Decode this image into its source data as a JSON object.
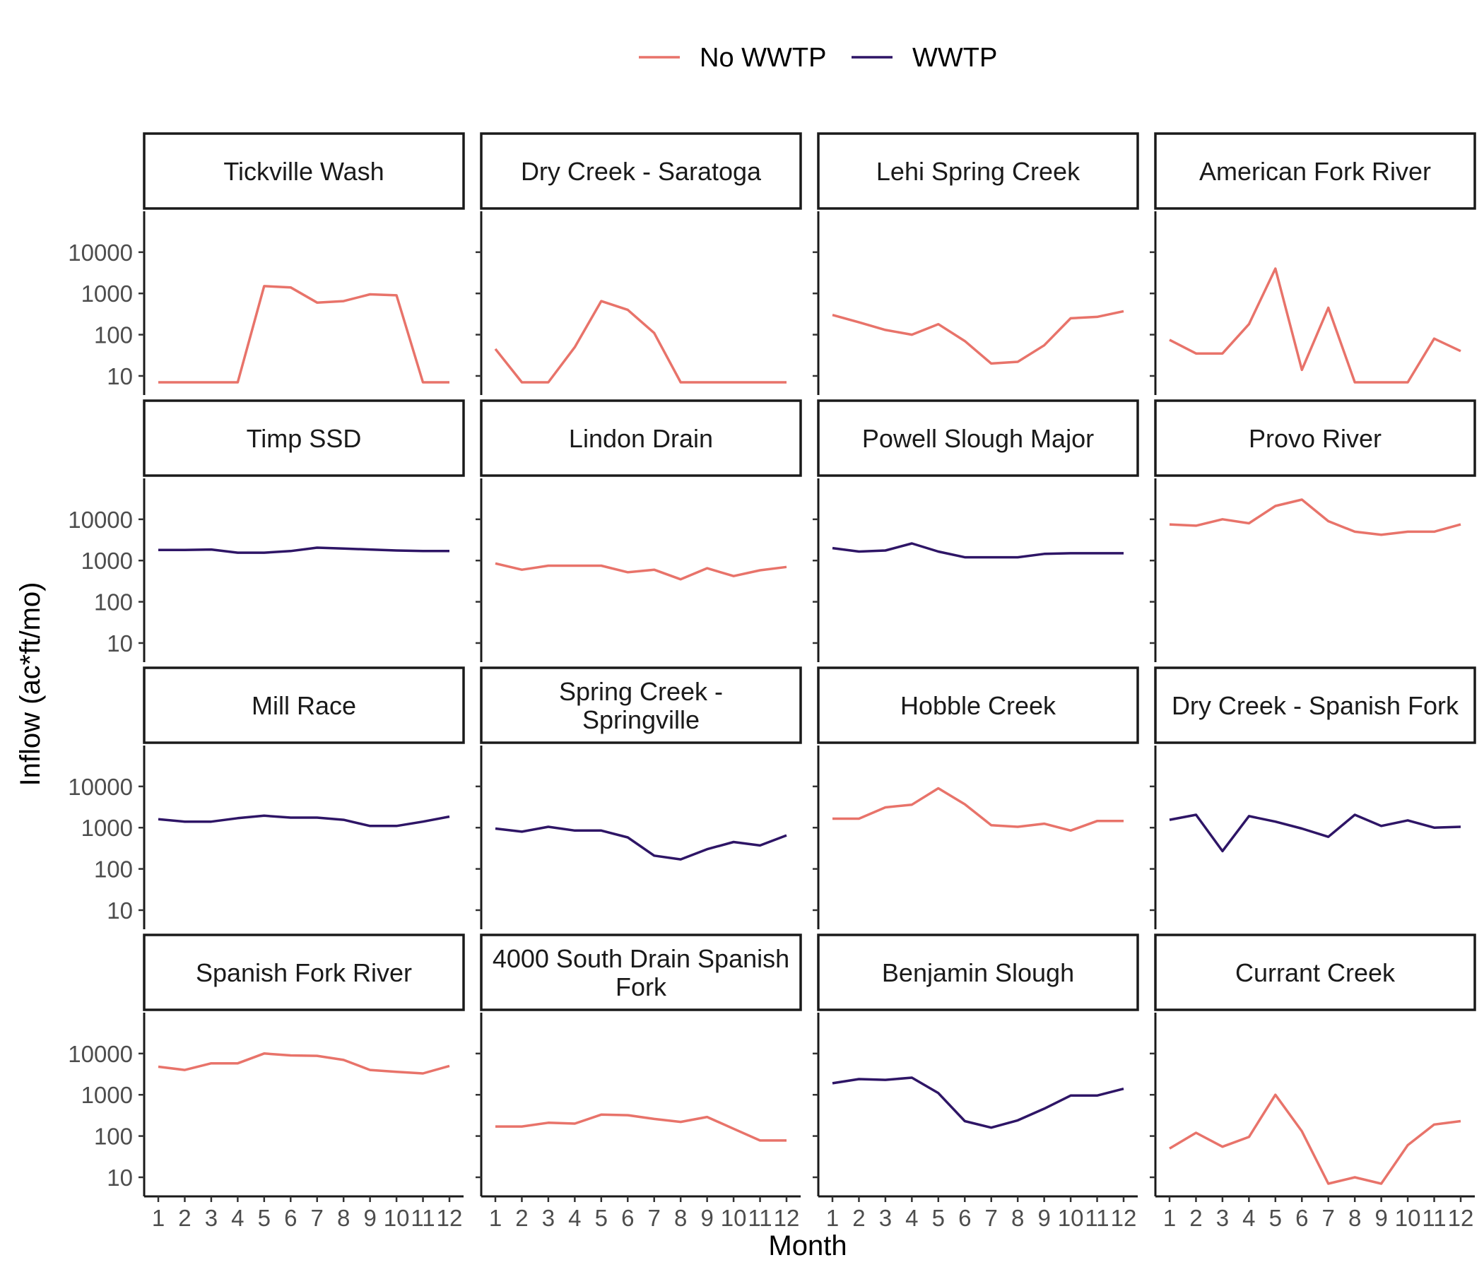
{
  "chart_data": {
    "type": "line",
    "layout": "facet-grid-4x4",
    "xlabel": "Month",
    "ylabel": "Inflow (ac*ft/mo)",
    "y_scale": "log10",
    "y_ticks": [
      10,
      100,
      1000,
      10000
    ],
    "x_ticks": [
      1,
      2,
      3,
      4,
      5,
      6,
      7,
      8,
      9,
      10,
      11,
      12
    ],
    "legend": {
      "position": "top",
      "entries": [
        {
          "label": "No WWTP",
          "color": "#E8736A"
        },
        {
          "label": "WWTP",
          "color": "#2E1566"
        }
      ]
    },
    "colors": {
      "No WWTP": "#E8736A",
      "WWTP": "#2E1566"
    },
    "grid": false,
    "panels": [
      {
        "title": [
          "Tickville Wash"
        ],
        "group": "No WWTP",
        "values": [
          7,
          7,
          7,
          7,
          1500,
          1400,
          600,
          650,
          950,
          900,
          7,
          7
        ]
      },
      {
        "title": [
          "Dry Creek - Saratoga"
        ],
        "group": "No WWTP",
        "values": [
          45,
          7,
          7,
          50,
          650,
          400,
          110,
          7,
          7,
          7,
          7,
          7
        ]
      },
      {
        "title": [
          "Lehi Spring Creek"
        ],
        "group": "No WWTP",
        "values": [
          300,
          200,
          130,
          100,
          180,
          70,
          20,
          22,
          55,
          250,
          270,
          370
        ]
      },
      {
        "title": [
          "American Fork River"
        ],
        "group": "No WWTP",
        "values": [
          75,
          35,
          35,
          180,
          4000,
          14,
          450,
          7,
          7,
          7,
          80,
          40
        ]
      },
      {
        "title": [
          "Timp SSD"
        ],
        "group": "WWTP",
        "values": [
          1800,
          1800,
          1850,
          1550,
          1550,
          1700,
          2050,
          1950,
          1850,
          1750,
          1700,
          1700
        ]
      },
      {
        "title": [
          "Lindon Drain"
        ],
        "group": "No WWTP",
        "values": [
          850,
          600,
          750,
          750,
          750,
          520,
          600,
          350,
          650,
          420,
          580,
          700
        ]
      },
      {
        "title": [
          "Powell Slough Major"
        ],
        "group": "WWTP",
        "values": [
          2000,
          1650,
          1750,
          2600,
          1650,
          1200,
          1200,
          1200,
          1450,
          1500,
          1500,
          1500
        ]
      },
      {
        "title": [
          "Provo River"
        ],
        "group": "No WWTP",
        "values": [
          7500,
          7000,
          10000,
          8000,
          21000,
          30000,
          9000,
          5000,
          4200,
          5000,
          5000,
          7500
        ]
      },
      {
        "title": [
          "Mill Race"
        ],
        "group": "WWTP",
        "values": [
          1600,
          1400,
          1400,
          1700,
          1950,
          1750,
          1750,
          1550,
          1100,
          1100,
          1400,
          1850
        ]
      },
      {
        "title": [
          "Spring Creek -",
          "Springville"
        ],
        "group": "WWTP",
        "values": [
          950,
          800,
          1050,
          850,
          850,
          580,
          210,
          170,
          300,
          450,
          370,
          650
        ]
      },
      {
        "title": [
          "Hobble Creek"
        ],
        "group": "No WWTP",
        "values": [
          1650,
          1650,
          3100,
          3600,
          9000,
          3700,
          1150,
          1050,
          1250,
          850,
          1450,
          1450
        ]
      },
      {
        "title": [
          "Dry Creek - Spanish Fork"
        ],
        "group": "WWTP",
        "values": [
          1550,
          2050,
          270,
          1900,
          1400,
          950,
          600,
          2050,
          1100,
          1500,
          1000,
          1050
        ]
      },
      {
        "title": [
          "Spanish Fork River"
        ],
        "group": "No WWTP",
        "values": [
          4800,
          4000,
          5800,
          5800,
          10000,
          9000,
          8800,
          7000,
          4000,
          3600,
          3300,
          5000
        ]
      },
      {
        "title": [
          "4000 South Drain Spanish",
          "Fork"
        ],
        "group": "No WWTP",
        "values": [
          170,
          170,
          210,
          200,
          330,
          320,
          260,
          220,
          290,
          150,
          78,
          78
        ]
      },
      {
        "title": [
          "Benjamin Slough"
        ],
        "group": "WWTP",
        "values": [
          1900,
          2400,
          2300,
          2600,
          1100,
          230,
          160,
          240,
          460,
          960,
          960,
          1400
        ]
      },
      {
        "title": [
          "Currant Creek"
        ],
        "group": "No WWTP",
        "values": [
          50,
          120,
          55,
          95,
          1000,
          130,
          7,
          10,
          7,
          60,
          190,
          230
        ]
      }
    ]
  }
}
